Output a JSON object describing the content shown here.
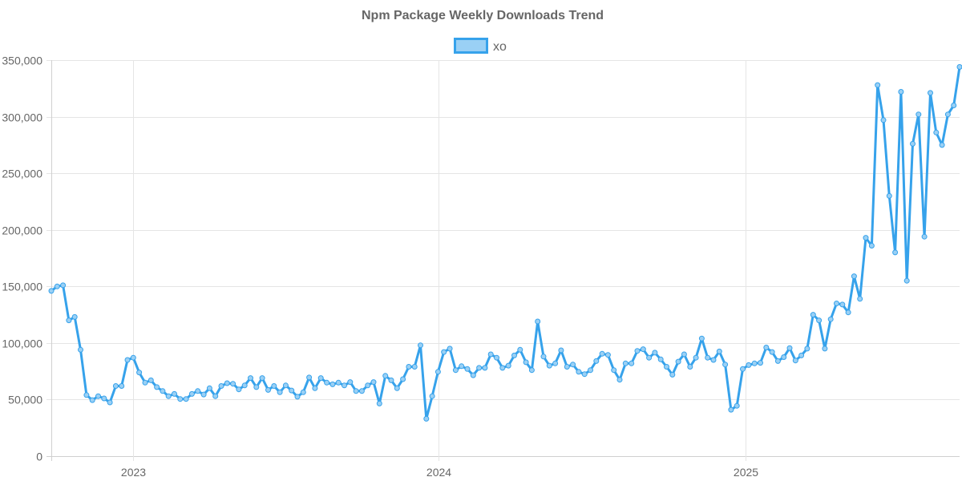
{
  "chart_data": {
    "type": "line",
    "title": "Npm Package Weekly Downloads Trend",
    "xlabel": "",
    "ylabel": "",
    "ylim": [
      0,
      350000
    ],
    "yticks": [
      0,
      50000,
      100000,
      150000,
      200000,
      250000,
      300000,
      350000
    ],
    "ytick_labels": [
      "0",
      "50,000",
      "100,000",
      "150,000",
      "200,000",
      "250,000",
      "300,000",
      "350,000"
    ],
    "xlim": [
      "2022-09-25",
      "2025-09-14"
    ],
    "xticks": [
      "2023-01-01",
      "2024-01-01",
      "2025-01-01"
    ],
    "xtick_labels": [
      "2023",
      "2024",
      "2025"
    ],
    "grid": true,
    "legend_position": "top-center",
    "color": "#36A2EB",
    "fill_color": "#9AD0F5",
    "series": [
      {
        "name": "xo",
        "x": [
          "2022-09-25",
          "2022-10-02",
          "2022-10-09",
          "2022-10-16",
          "2022-10-23",
          "2022-10-30",
          "2022-11-06",
          "2022-11-13",
          "2022-11-20",
          "2022-11-27",
          "2022-12-04",
          "2022-12-11",
          "2022-12-18",
          "2022-12-25",
          "2023-01-01",
          "2023-01-08",
          "2023-01-15",
          "2023-01-22",
          "2023-01-29",
          "2023-02-05",
          "2023-02-12",
          "2023-02-19",
          "2023-02-26",
          "2023-03-05",
          "2023-03-12",
          "2023-03-19",
          "2023-03-26",
          "2023-04-02",
          "2023-04-09",
          "2023-04-16",
          "2023-04-23",
          "2023-04-30",
          "2023-05-07",
          "2023-05-14",
          "2023-05-21",
          "2023-05-28",
          "2023-06-04",
          "2023-06-11",
          "2023-06-18",
          "2023-06-25",
          "2023-07-02",
          "2023-07-09",
          "2023-07-16",
          "2023-07-23",
          "2023-07-30",
          "2023-08-06",
          "2023-08-13",
          "2023-08-20",
          "2023-08-27",
          "2023-09-03",
          "2023-09-10",
          "2023-09-17",
          "2023-09-24",
          "2023-10-01",
          "2023-10-08",
          "2023-10-15",
          "2023-10-22",
          "2023-10-29",
          "2023-11-05",
          "2023-11-12",
          "2023-11-19",
          "2023-11-26",
          "2023-12-03",
          "2023-12-10",
          "2023-12-17",
          "2023-12-24",
          "2023-12-31",
          "2024-01-07",
          "2024-01-14",
          "2024-01-21",
          "2024-01-28",
          "2024-02-04",
          "2024-02-11",
          "2024-02-18",
          "2024-02-25",
          "2024-03-03",
          "2024-03-10",
          "2024-03-17",
          "2024-03-24",
          "2024-03-31",
          "2024-04-07",
          "2024-04-14",
          "2024-04-21",
          "2024-04-28",
          "2024-05-05",
          "2024-05-12",
          "2024-05-19",
          "2024-05-26",
          "2024-06-02",
          "2024-06-09",
          "2024-06-16",
          "2024-06-23",
          "2024-06-30",
          "2024-07-07",
          "2024-07-14",
          "2024-07-21",
          "2024-07-28",
          "2024-08-04",
          "2024-08-11",
          "2024-08-18",
          "2024-08-25",
          "2024-09-01",
          "2024-09-08",
          "2024-09-15",
          "2024-09-22",
          "2024-09-29",
          "2024-10-06",
          "2024-10-13",
          "2024-10-20",
          "2024-10-27",
          "2024-11-03",
          "2024-11-10",
          "2024-11-17",
          "2024-11-24",
          "2024-12-01",
          "2024-12-08",
          "2024-12-15",
          "2024-12-22",
          "2024-12-29",
          "2025-01-05",
          "2025-01-12",
          "2025-01-19",
          "2025-01-26",
          "2025-02-02",
          "2025-02-09",
          "2025-02-16",
          "2025-02-23",
          "2025-03-02",
          "2025-03-09",
          "2025-03-16",
          "2025-03-23",
          "2025-03-30",
          "2025-04-06",
          "2025-04-13",
          "2025-04-20",
          "2025-04-27",
          "2025-05-04",
          "2025-05-11",
          "2025-05-18",
          "2025-05-25",
          "2025-06-01",
          "2025-06-08",
          "2025-06-15",
          "2025-06-22",
          "2025-06-29",
          "2025-07-06",
          "2025-07-13",
          "2025-07-20",
          "2025-07-27",
          "2025-08-03",
          "2025-08-10",
          "2025-08-17",
          "2025-08-24",
          "2025-08-31",
          "2025-09-07",
          "2025-09-14"
        ],
        "values": [
          146000,
          150000,
          151000,
          120000,
          123000,
          94000,
          54000,
          49500,
          53000,
          51000,
          47500,
          62000,
          62000,
          85000,
          87000,
          74000,
          65000,
          67000,
          61000,
          57500,
          53000,
          55000,
          50500,
          50500,
          55000,
          57500,
          54500,
          60000,
          53000,
          62000,
          64500,
          64000,
          59000,
          62500,
          69000,
          61000,
          69000,
          58500,
          62000,
          56500,
          62500,
          58000,
          52500,
          56500,
          69500,
          60000,
          69000,
          65000,
          63500,
          65000,
          62500,
          65500,
          57500,
          57500,
          62500,
          65500,
          46500,
          71000,
          67000,
          60000,
          68000,
          79000,
          79000,
          98000,
          33000,
          53000,
          74500,
          92000,
          95000,
          76000,
          79500,
          77000,
          71500,
          78000,
          78000,
          90000,
          87000,
          78000,
          80000,
          89000,
          94000,
          83000,
          76000,
          119000,
          88000,
          80000,
          82000,
          93500,
          79000,
          81000,
          74500,
          72500,
          76000,
          84000,
          90500,
          89500,
          76000,
          67500,
          82000,
          82000,
          93000,
          94500,
          87000,
          91500,
          85500,
          79000,
          72000,
          83500,
          90000,
          79000,
          87000,
          104000,
          87000,
          85000,
          92500,
          81000,
          41000,
          44500,
          77000,
          80500,
          82000,
          82500,
          96000,
          92000,
          84000,
          87500,
          95500,
          84500,
          89000,
          95000,
          125000,
          120000,
          95000,
          121000,
          135000,
          134000,
          127000,
          159000,
          139000,
          193000,
          186000,
          328000,
          297000,
          230000,
          180000,
          322000,
          155000,
          276000,
          302000,
          194000,
          321000,
          286000,
          275000,
          302000,
          310000,
          344000
        ]
      }
    ]
  }
}
